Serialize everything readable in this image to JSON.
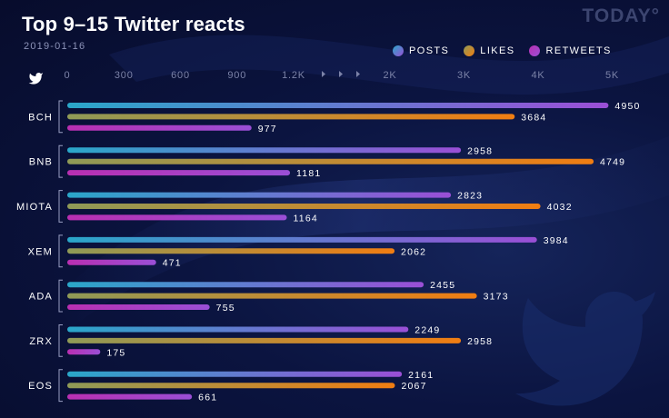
{
  "header": {
    "title": "Top 9–15 Twitter reacts",
    "date": "2019-01-16",
    "brand": "TODAY°"
  },
  "icons": {
    "corner": "twitter-bird-icon",
    "watermark": "twitter-bird-watermark"
  },
  "colors": {
    "background": "#0b1440",
    "posts": [
      "#2aa7c9",
      "#9a4fd6"
    ],
    "likes": [
      "#8f9a57",
      "#f07d12"
    ],
    "retweets": [
      "#b92fb1",
      "#9a4fd6"
    ],
    "tick_text": "#7c83a8",
    "value_text": "#ffffff"
  },
  "chart_data": {
    "type": "bar",
    "orientation": "horizontal",
    "title": "Top 9–15 Twitter reacts",
    "subtitle": "2019-01-16",
    "categories": [
      "BCH",
      "BNB",
      "MIOTA",
      "XEM",
      "ADA",
      "ZRX",
      "EOS"
    ],
    "series": [
      {
        "name": "POSTS",
        "values": [
          4950,
          2958,
          2823,
          3984,
          2455,
          2249,
          2161
        ]
      },
      {
        "name": "LIKES",
        "values": [
          3684,
          4749,
          4032,
          2062,
          3173,
          2958,
          2067
        ]
      },
      {
        "name": "RETWEETS",
        "values": [
          977,
          1181,
          1164,
          471,
          755,
          175,
          661
        ]
      }
    ],
    "x_ticks": [
      "0",
      "300",
      "600",
      "900",
      "1.2K",
      "2K",
      "3K",
      "4K",
      "5K"
    ],
    "x_tick_values": [
      0,
      300,
      600,
      900,
      1200,
      2000,
      3000,
      4000,
      5000
    ],
    "x_axis_break": {
      "from": 1200,
      "to": 2000
    },
    "xlim": [
      0,
      5000
    ],
    "xlabel": "",
    "ylabel": "",
    "legend_position": "top-right",
    "grid": false
  }
}
